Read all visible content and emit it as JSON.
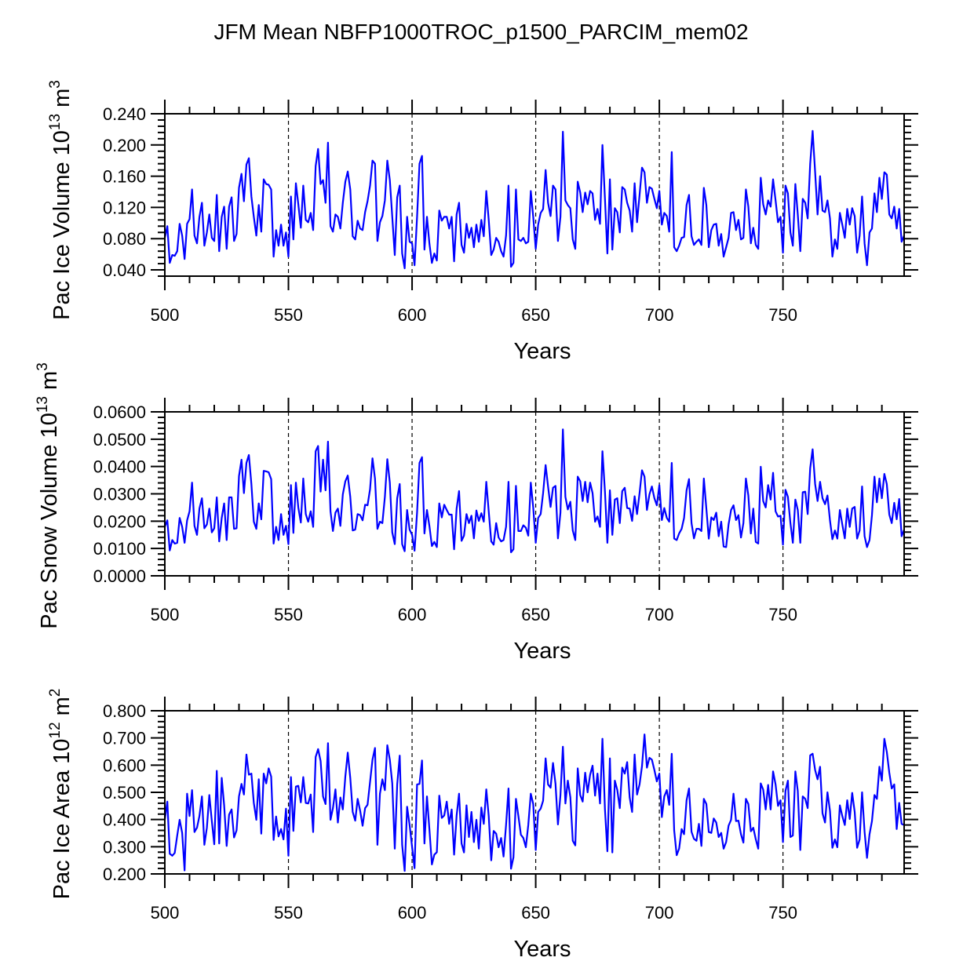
{
  "chart_data": [
    {
      "type": "line",
      "title": "JFM Mean NBFP1000TROC_p1500_PARCIM_mem02",
      "xlabel": "Years",
      "ylabel": {
        "text": "Pac Ice Volume 10",
        "exp": "13",
        "unit": " m",
        "unit_exp": "3"
      },
      "xlim": [
        500,
        799
      ],
      "ylim": [
        0.032,
        0.24
      ],
      "xticks": [
        500,
        550,
        600,
        650,
        700,
        750
      ],
      "xtick_labels": [
        "500",
        "550",
        "600",
        "650",
        "700",
        "750"
      ],
      "yticks": [
        0.04,
        0.08,
        0.12,
        0.16,
        0.2,
        0.24
      ],
      "ytick_labels": [
        "0.040",
        "0.080",
        "0.120",
        "0.160",
        "0.200",
        "0.240"
      ],
      "yminor_step": 0.008,
      "reference_lines_x": [
        550,
        600,
        650,
        700,
        750
      ],
      "line_color": "#0000ff",
      "x_start": 500,
      "values": [
        0.081,
        0.096,
        0.049,
        0.059,
        0.058,
        0.064,
        0.099,
        0.084,
        0.054,
        0.099,
        0.105,
        0.143,
        0.084,
        0.074,
        0.108,
        0.126,
        0.071,
        0.088,
        0.111,
        0.081,
        0.077,
        0.136,
        0.064,
        0.108,
        0.121,
        0.067,
        0.121,
        0.133,
        0.077,
        0.086,
        0.145,
        0.163,
        0.128,
        0.175,
        0.183,
        0.134,
        0.108,
        0.084,
        0.123,
        0.089,
        0.156,
        0.15,
        0.149,
        0.143,
        0.057,
        0.091,
        0.071,
        0.098,
        0.071,
        0.088,
        0.057,
        0.134,
        0.079,
        0.151,
        0.124,
        0.094,
        0.148,
        0.104,
        0.101,
        0.113,
        0.091,
        0.173,
        0.195,
        0.15,
        0.155,
        0.126,
        0.203,
        0.096,
        0.089,
        0.111,
        0.108,
        0.093,
        0.126,
        0.153,
        0.166,
        0.143,
        0.083,
        0.079,
        0.103,
        0.093,
        0.091,
        0.114,
        0.128,
        0.148,
        0.18,
        0.176,
        0.077,
        0.101,
        0.109,
        0.129,
        0.18,
        0.155,
        0.108,
        0.059,
        0.133,
        0.148,
        0.061,
        0.042,
        0.108,
        0.076,
        0.074,
        0.046,
        0.108,
        0.176,
        0.186,
        0.066,
        0.108,
        0.074,
        0.049,
        0.061,
        0.052,
        0.116,
        0.103,
        0.108,
        0.108,
        0.093,
        0.108,
        0.051,
        0.111,
        0.126,
        0.072,
        0.062,
        0.099,
        0.081,
        0.094,
        0.069,
        0.098,
        0.076,
        0.104,
        0.083,
        0.141,
        0.104,
        0.059,
        0.066,
        0.081,
        0.076,
        0.064,
        0.057,
        0.084,
        0.148,
        0.044,
        0.049,
        0.143,
        0.079,
        0.077,
        0.081,
        0.074,
        0.076,
        0.141,
        0.108,
        0.067,
        0.098,
        0.113,
        0.118,
        0.168,
        0.126,
        0.109,
        0.148,
        0.143,
        0.077,
        0.108,
        0.217,
        0.129,
        0.123,
        0.119,
        0.079,
        0.067,
        0.153,
        0.139,
        0.114,
        0.139,
        0.124,
        0.141,
        0.138,
        0.104,
        0.118,
        0.099,
        0.2,
        0.131,
        0.061,
        0.156,
        0.066,
        0.119,
        0.114,
        0.088,
        0.146,
        0.143,
        0.126,
        0.116,
        0.089,
        0.151,
        0.101,
        0.136,
        0.171,
        0.165,
        0.126,
        0.146,
        0.144,
        0.131,
        0.119,
        0.141,
        0.098,
        0.113,
        0.109,
        0.089,
        0.191,
        0.069,
        0.064,
        0.071,
        0.081,
        0.082,
        0.123,
        0.136,
        0.083,
        0.072,
        0.076,
        0.079,
        0.072,
        0.145,
        0.123,
        0.069,
        0.091,
        0.098,
        0.099,
        0.071,
        0.086,
        0.057,
        0.069,
        0.081,
        0.113,
        0.114,
        0.091,
        0.104,
        0.079,
        0.081,
        0.143,
        0.121,
        0.074,
        0.094,
        0.072,
        0.067,
        0.158,
        0.124,
        0.111,
        0.129,
        0.121,
        0.156,
        0.129,
        0.101,
        0.108,
        0.062,
        0.148,
        0.138,
        0.088,
        0.071,
        0.15,
        0.111,
        0.064,
        0.131,
        0.126,
        0.106,
        0.176,
        0.218,
        0.165,
        0.111,
        0.16,
        0.116,
        0.114,
        0.129,
        0.106,
        0.057,
        0.079,
        0.067,
        0.113,
        0.098,
        0.081,
        0.118,
        0.098,
        0.119,
        0.109,
        0.062,
        0.084,
        0.134,
        0.074,
        0.046,
        0.088,
        0.093,
        0.138,
        0.114,
        0.158,
        0.131,
        0.165,
        0.162,
        0.111,
        0.106,
        0.121,
        0.093,
        0.118,
        0.076,
        0.084
      ]
    },
    {
      "type": "line",
      "xlabel": "Years",
      "ylabel": {
        "text": "Pac Snow Volume 10",
        "exp": "13",
        "unit": " m",
        "unit_exp": "3"
      },
      "xlim": [
        500,
        799
      ],
      "ylim": [
        0.0,
        0.06
      ],
      "xticks": [
        500,
        550,
        600,
        650,
        700,
        750
      ],
      "xtick_labels": [
        "500",
        "550",
        "600",
        "650",
        "700",
        "750"
      ],
      "yticks": [
        0.0,
        0.01,
        0.02,
        0.03,
        0.04,
        0.05,
        0.06
      ],
      "ytick_labels": [
        "0.0000",
        "0.0100",
        "0.0200",
        "0.0300",
        "0.0400",
        "0.0500",
        "0.0600"
      ],
      "yminor_step": 0.002,
      "reference_lines_x": [
        550,
        600,
        650,
        700,
        750
      ],
      "line_color": "#0000ff",
      "x_start": 500,
      "values": [
        0.018,
        0.0203,
        0.0093,
        0.0131,
        0.0118,
        0.0121,
        0.0212,
        0.0179,
        0.0121,
        0.0203,
        0.0236,
        0.0341,
        0.0183,
        0.015,
        0.0246,
        0.0284,
        0.0174,
        0.0188,
        0.0246,
        0.0159,
        0.0174,
        0.0287,
        0.0126,
        0.0212,
        0.0265,
        0.0131,
        0.0287,
        0.0287,
        0.0172,
        0.0174,
        0.0365,
        0.0425,
        0.0303,
        0.0413,
        0.0442,
        0.0336,
        0.0198,
        0.0172,
        0.0265,
        0.0207,
        0.0384,
        0.0382,
        0.0379,
        0.0354,
        0.0118,
        0.0179,
        0.0131,
        0.0226,
        0.015,
        0.0183,
        0.0116,
        0.0332,
        0.0157,
        0.0341,
        0.025,
        0.0195,
        0.0356,
        0.0226,
        0.0198,
        0.0236,
        0.0179,
        0.0456,
        0.0475,
        0.0308,
        0.0425,
        0.0313,
        0.0491,
        0.0236,
        0.0164,
        0.0231,
        0.0246,
        0.0183,
        0.0298,
        0.0346,
        0.0367,
        0.0289,
        0.0166,
        0.0169,
        0.0226,
        0.0222,
        0.0203,
        0.026,
        0.0258,
        0.0317,
        0.043,
        0.0356,
        0.0172,
        0.0198,
        0.0193,
        0.0289,
        0.0427,
        0.0341,
        0.0159,
        0.0116,
        0.0284,
        0.0336,
        0.0116,
        0.009,
        0.0241,
        0.0169,
        0.015,
        0.0092,
        0.0231,
        0.0413,
        0.0434,
        0.0155,
        0.0241,
        0.0183,
        0.0109,
        0.0124,
        0.0105,
        0.0265,
        0.0214,
        0.026,
        0.0241,
        0.0224,
        0.0224,
        0.0097,
        0.0246,
        0.031,
        0.0128,
        0.0147,
        0.0226,
        0.0193,
        0.022,
        0.0137,
        0.0239,
        0.0201,
        0.0229,
        0.0198,
        0.0344,
        0.0236,
        0.0126,
        0.0114,
        0.0193,
        0.014,
        0.0126,
        0.0131,
        0.0179,
        0.0344,
        0.0086,
        0.0097,
        0.0329,
        0.0164,
        0.0164,
        0.0185,
        0.0176,
        0.0147,
        0.0341,
        0.025,
        0.0121,
        0.0212,
        0.0226,
        0.0303,
        0.0405,
        0.0327,
        0.0252,
        0.0322,
        0.0329,
        0.0137,
        0.0231,
        0.0536,
        0.0289,
        0.0243,
        0.0271,
        0.0166,
        0.0131,
        0.0363,
        0.0346,
        0.0274,
        0.0344,
        0.0269,
        0.0341,
        0.0303,
        0.0198,
        0.0217,
        0.0179,
        0.0456,
        0.0308,
        0.0121,
        0.0313,
        0.015,
        0.0279,
        0.0284,
        0.0193,
        0.031,
        0.0322,
        0.0248,
        0.0246,
        0.0201,
        0.0291,
        0.0226,
        0.0303,
        0.0386,
        0.0363,
        0.0241,
        0.0298,
        0.0327,
        0.0284,
        0.0258,
        0.0332,
        0.0204,
        0.0248,
        0.0212,
        0.0198,
        0.0413,
        0.0136,
        0.0131,
        0.0155,
        0.0172,
        0.0212,
        0.0313,
        0.0354,
        0.0193,
        0.0137,
        0.0172,
        0.0172,
        0.0164,
        0.0356,
        0.0246,
        0.0136,
        0.0214,
        0.0204,
        0.0231,
        0.0145,
        0.0198,
        0.0107,
        0.0105,
        0.0188,
        0.0241,
        0.0258,
        0.0204,
        0.0222,
        0.014,
        0.0193,
        0.0356,
        0.0294,
        0.0155,
        0.0246,
        0.0124,
        0.0118,
        0.0399,
        0.0274,
        0.025,
        0.0332,
        0.0279,
        0.0377,
        0.0236,
        0.0217,
        0.022,
        0.0114,
        0.0315,
        0.0289,
        0.0193,
        0.0121,
        0.0279,
        0.0241,
        0.0121,
        0.0306,
        0.0308,
        0.0226,
        0.0394,
        0.0463,
        0.0336,
        0.0274,
        0.0344,
        0.0284,
        0.0262,
        0.0294,
        0.0203,
        0.0134,
        0.0166,
        0.0136,
        0.0241,
        0.0188,
        0.0137,
        0.0246,
        0.0179,
        0.0246,
        0.0252,
        0.0136,
        0.0166,
        0.0327,
        0.0145,
        0.0105,
        0.0131,
        0.0222,
        0.0363,
        0.0269,
        0.0356,
        0.0284,
        0.0373,
        0.0336,
        0.0224,
        0.0193,
        0.0267,
        0.0207,
        0.0281,
        0.0145,
        0.0169
      ]
    },
    {
      "type": "line",
      "xlabel": "Years",
      "ylabel": {
        "text": "Pac Ice Area 10",
        "exp": "12",
        "unit": " m",
        "unit_exp": "2"
      },
      "xlim": [
        500,
        799
      ],
      "ylim": [
        0.2,
        0.8
      ],
      "xticks": [
        500,
        550,
        600,
        650,
        700,
        750
      ],
      "xtick_labels": [
        "500",
        "550",
        "600",
        "650",
        "700",
        "750"
      ],
      "yticks": [
        0.2,
        0.3,
        0.4,
        0.5,
        0.6,
        0.7,
        0.8
      ],
      "ytick_labels": [
        "0.200",
        "0.300",
        "0.400",
        "0.500",
        "0.600",
        "0.700",
        "0.800"
      ],
      "yminor_step": 0.02,
      "reference_lines_x": [
        550,
        600,
        650,
        700,
        750
      ],
      "line_color": "#0000ff",
      "x_start": 500,
      "values": [
        0.4,
        0.466,
        0.274,
        0.267,
        0.277,
        0.341,
        0.399,
        0.351,
        0.213,
        0.495,
        0.413,
        0.508,
        0.354,
        0.37,
        0.413,
        0.485,
        0.307,
        0.37,
        0.49,
        0.394,
        0.309,
        0.579,
        0.312,
        0.553,
        0.452,
        0.303,
        0.418,
        0.437,
        0.334,
        0.36,
        0.485,
        0.531,
        0.492,
        0.639,
        0.565,
        0.569,
        0.461,
        0.399,
        0.548,
        0.348,
        0.569,
        0.533,
        0.588,
        0.558,
        0.325,
        0.411,
        0.338,
        0.365,
        0.327,
        0.44,
        0.267,
        0.556,
        0.358,
        0.521,
        0.524,
        0.463,
        0.556,
        0.461,
        0.459,
        0.492,
        0.354,
        0.63,
        0.659,
        0.615,
        0.485,
        0.457,
        0.681,
        0.399,
        0.442,
        0.511,
        0.389,
        0.481,
        0.437,
        0.558,
        0.646,
        0.553,
        0.428,
        0.396,
        0.476,
        0.432,
        0.377,
        0.442,
        0.454,
        0.538,
        0.62,
        0.663,
        0.307,
        0.495,
        0.548,
        0.508,
        0.673,
        0.62,
        0.533,
        0.293,
        0.529,
        0.635,
        0.307,
        0.211,
        0.447,
        0.38,
        0.298,
        0.221,
        0.529,
        0.531,
        0.617,
        0.312,
        0.485,
        0.365,
        0.235,
        0.271,
        0.28,
        0.488,
        0.406,
        0.415,
        0.466,
        0.384,
        0.437,
        0.271,
        0.415,
        0.495,
        0.312,
        0.279,
        0.452,
        0.336,
        0.428,
        0.317,
        0.399,
        0.293,
        0.444,
        0.384,
        0.511,
        0.413,
        0.25,
        0.358,
        0.348,
        0.298,
        0.332,
        0.264,
        0.38,
        0.514,
        0.219,
        0.261,
        0.476,
        0.413,
        0.344,
        0.332,
        0.298,
        0.38,
        0.495,
        0.457,
        0.288,
        0.428,
        0.44,
        0.469,
        0.625,
        0.529,
        0.517,
        0.608,
        0.531,
        0.382,
        0.49,
        0.668,
        0.459,
        0.543,
        0.482,
        0.322,
        0.305,
        0.588,
        0.49,
        0.466,
        0.572,
        0.5,
        0.565,
        0.598,
        0.488,
        0.569,
        0.459,
        0.697,
        0.437,
        0.283,
        0.625,
        0.279,
        0.543,
        0.509,
        0.442,
        0.591,
        0.569,
        0.611,
        0.481,
        0.428,
        0.639,
        0.492,
        0.529,
        0.596,
        0.713,
        0.591,
        0.627,
        0.62,
        0.582,
        0.54,
        0.569,
        0.409,
        0.485,
        0.508,
        0.454,
        0.642,
        0.36,
        0.269,
        0.293,
        0.365,
        0.346,
        0.471,
        0.514,
        0.355,
        0.329,
        0.322,
        0.384,
        0.303,
        0.476,
        0.457,
        0.354,
        0.351,
        0.404,
        0.389,
        0.336,
        0.351,
        0.293,
        0.317,
        0.377,
        0.399,
        0.495,
        0.394,
        0.396,
        0.346,
        0.315,
        0.476,
        0.457,
        0.357,
        0.37,
        0.327,
        0.293,
        0.533,
        0.51,
        0.437,
        0.527,
        0.437,
        0.577,
        0.529,
        0.45,
        0.471,
        0.317,
        0.505,
        0.543,
        0.336,
        0.341,
        0.577,
        0.505,
        0.288,
        0.485,
        0.476,
        0.442,
        0.636,
        0.642,
        0.582,
        0.548,
        0.594,
        0.423,
        0.389,
        0.5,
        0.432,
        0.296,
        0.327,
        0.298,
        0.452,
        0.413,
        0.38,
        0.471,
        0.402,
        0.498,
        0.428,
        0.296,
        0.327,
        0.5,
        0.355,
        0.259,
        0.346,
        0.394,
        0.49,
        0.476,
        0.594,
        0.543,
        0.697,
        0.649,
        0.572,
        0.514,
        0.529,
        0.365,
        0.461,
        0.384,
        0.38
      ]
    }
  ]
}
